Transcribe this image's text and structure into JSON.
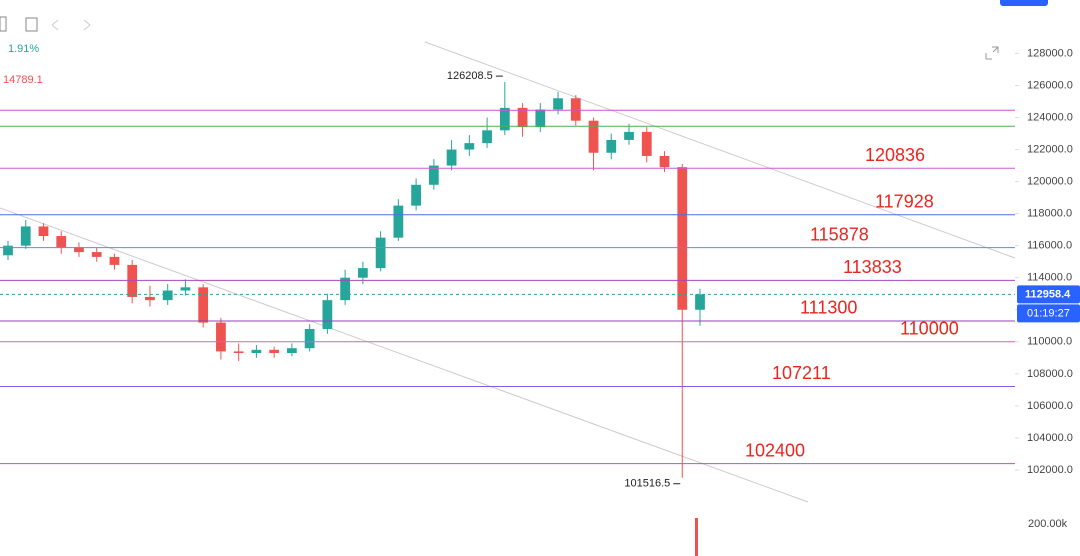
{
  "chart_data": {
    "type": "candlestick",
    "header": {
      "change": "1.91%",
      "price": "14789.1"
    },
    "up_color": "#26a69a",
    "down_color": "#ef5350",
    "candles": [
      [
        115400,
        116300,
        115100,
        116000
      ],
      [
        116000,
        117600,
        115800,
        117200
      ],
      [
        117200,
        117400,
        116300,
        116600
      ],
      [
        116600,
        116900,
        115500,
        115900
      ],
      [
        115900,
        116200,
        115300,
        115600
      ],
      [
        115600,
        115900,
        115000,
        115300
      ],
      [
        115300,
        115500,
        114500,
        114800
      ],
      [
        114800,
        115100,
        112400,
        112800
      ],
      [
        112800,
        113500,
        112200,
        112600
      ],
      [
        112600,
        113600,
        112300,
        113200
      ],
      [
        113200,
        113900,
        112900,
        113400
      ],
      [
        113400,
        113600,
        110900,
        111200
      ],
      [
        111200,
        111500,
        108900,
        109400
      ],
      [
        109400,
        109900,
        108800,
        109300
      ],
      [
        109300,
        109800,
        109000,
        109500
      ],
      [
        109500,
        109700,
        109000,
        109300
      ],
      [
        109300,
        109900,
        109100,
        109600
      ],
      [
        109600,
        111100,
        109400,
        110800
      ],
      [
        110800,
        113000,
        110500,
        112600
      ],
      [
        112600,
        114500,
        112300,
        114000
      ],
      [
        114000,
        115000,
        113600,
        114600
      ],
      [
        114600,
        116900,
        114400,
        116500
      ],
      [
        116500,
        118900,
        116300,
        118500
      ],
      [
        118500,
        120200,
        118200,
        119800
      ],
      [
        119800,
        121400,
        119500,
        121000
      ],
      [
        121000,
        122600,
        120700,
        122000
      ],
      [
        122000,
        122900,
        121600,
        122400
      ],
      [
        122400,
        124000,
        122100,
        123200
      ],
      [
        123200,
        126208.5,
        122900,
        124600
      ],
      [
        124600,
        124900,
        122800,
        123400
      ],
      [
        123400,
        124900,
        123100,
        124500
      ],
      [
        124500,
        125600,
        124200,
        125200
      ],
      [
        125200,
        125400,
        123500,
        123800
      ],
      [
        123800,
        124000,
        120700,
        121800
      ],
      [
        121800,
        123000,
        121400,
        122600
      ],
      [
        122600,
        123600,
        122300,
        123100
      ],
      [
        123100,
        123400,
        121200,
        121600
      ],
      [
        121600,
        121900,
        120600,
        120900
      ],
      [
        120900,
        121100,
        101516.5,
        112000
      ],
      [
        112000,
        113300,
        111000,
        112958.4
      ]
    ],
    "high_note": 28,
    "low_note": 38,
    "levels": [
      {
        "value": 120836,
        "color": "#d05ad0"
      },
      {
        "value": 117928,
        "color": "#4a6ee0"
      },
      {
        "value": 115878,
        "color": "#5a8af0"
      },
      {
        "value": 113833,
        "color": "#a848b8"
      },
      {
        "value": 111300,
        "color": "#9040c0"
      },
      {
        "value": 110000,
        "color": "#d060d0"
      },
      {
        "value": 107211,
        "color": "#8a5ae0"
      },
      {
        "value": 102400,
        "color": "#c050c0"
      }
    ],
    "guides": [
      {
        "value": 124450,
        "color": "#d050d0"
      },
      {
        "value": 123450,
        "color": "#4caf50"
      }
    ],
    "last_price": {
      "value": 112958.4,
      "countdown": "01:19:27"
    },
    "ylim": [
      101000,
      128400
    ],
    "yticks": [
      {
        "value": 128000,
        "label": "128000.0"
      },
      {
        "value": 126000,
        "label": "126000.0"
      },
      {
        "value": 124000,
        "label": "124000.0"
      },
      {
        "value": 122000,
        "label": "122000.0"
      },
      {
        "value": 120000,
        "label": "120000.0"
      },
      {
        "value": 118000,
        "label": "118000.0"
      },
      {
        "value": 116000,
        "label": "116000.0"
      },
      {
        "value": 114000,
        "label": "114000.0"
      },
      {
        "value": 112000,
        "label": "112000.0"
      },
      {
        "value": 110000,
        "label": "110000.0"
      },
      {
        "value": 108000,
        "label": "108000.0"
      },
      {
        "value": 106000,
        "label": "106000.0"
      },
      {
        "value": 104000,
        "label": "104000.0"
      },
      {
        "value": 102000,
        "label": "102000.0"
      }
    ],
    "volume_label": "200.00k"
  }
}
